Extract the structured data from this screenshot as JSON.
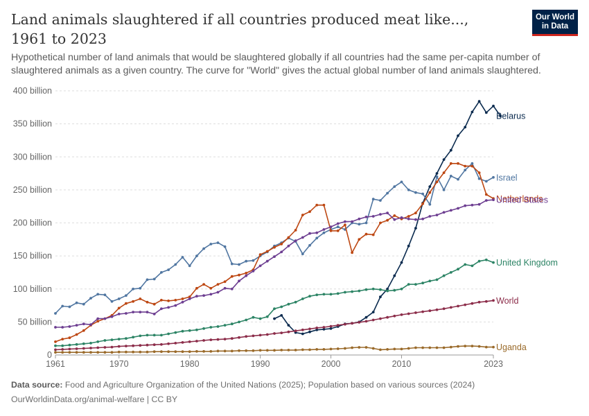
{
  "header": {
    "title": "Land animals slaughtered if all countries produced meat like..., 1961 to 2023",
    "subtitle": "Hypothetical number of land animals that would be slaughtered globally if all countries had the same per-capita number of slaughtered animals as a given country. The curve for \"World\" gives the actual global number of land animals slaughtered.",
    "logo_line1": "Our World",
    "logo_line2": "in Data"
  },
  "footer": {
    "source_label": "Data source:",
    "source_text": "Food and Agriculture Organization of the United Nations (2025); Population based on various sources (2024)",
    "url_text": "OurWorldinData.org/animal-welfare | CC BY"
  },
  "chart_data": {
    "type": "line",
    "xlim": [
      1961,
      2023
    ],
    "ylim": [
      0,
      400
    ],
    "x_ticks": [
      1961,
      1970,
      1980,
      1990,
      2000,
      2010,
      2023
    ],
    "y_ticks": [
      {
        "value": 0,
        "label": "0"
      },
      {
        "value": 50,
        "label": "50 billion"
      },
      {
        "value": 100,
        "label": "100 billion"
      },
      {
        "value": 150,
        "label": "150 billion"
      },
      {
        "value": 200,
        "label": "200 billion"
      },
      {
        "value": 250,
        "label": "250 billion"
      },
      {
        "value": 300,
        "label": "300 billion"
      },
      {
        "value": 350,
        "label": "350 billion"
      },
      {
        "value": 400,
        "label": "400 billion"
      }
    ],
    "grid": "horizontal-dashed",
    "legend": "right, labels at line ends",
    "series": [
      {
        "name": "Belarus",
        "color": "#0b2b4f",
        "x_start": 1992,
        "values": [
          55,
          60,
          45,
          34,
          32,
          35,
          38,
          39,
          40,
          43,
          47,
          48,
          50,
          57,
          65,
          88,
          100,
          120,
          140,
          165,
          192,
          230,
          255,
          275,
          296,
          310,
          332,
          345,
          368,
          384,
          367,
          377,
          362
        ]
      },
      {
        "name": "Israel",
        "color": "#5076a1",
        "x_start": 1961,
        "values": [
          63,
          74,
          73,
          79,
          77,
          86,
          92,
          91,
          81,
          85,
          90,
          100,
          101,
          114,
          115,
          125,
          129,
          137,
          148,
          135,
          150,
          161,
          168,
          170,
          164,
          138,
          137,
          142,
          143,
          150,
          156,
          165,
          170,
          177,
          172,
          153,
          166,
          177,
          185,
          190,
          194,
          190,
          200,
          198,
          200,
          236,
          234,
          245,
          255,
          262,
          250,
          246,
          244,
          228,
          270,
          250,
          271,
          266,
          280,
          290,
          267,
          263,
          269
        ]
      },
      {
        "name": "Netherlands",
        "color": "#bd4712",
        "x_start": 1961,
        "values": [
          20,
          24,
          26,
          31,
          37,
          45,
          51,
          55,
          60,
          71,
          78,
          81,
          85,
          80,
          77,
          83,
          82,
          83,
          85,
          88,
          101,
          107,
          101,
          107,
          111,
          119,
          121,
          124,
          129,
          152,
          157,
          163,
          168,
          178,
          189,
          212,
          217,
          227,
          227,
          188,
          188,
          197,
          155,
          175,
          183,
          182,
          200,
          204,
          211,
          206,
          210,
          215,
          229,
          246,
          262,
          276,
          290,
          290,
          286,
          286,
          276,
          243,
          237
        ]
      },
      {
        "name": "United States",
        "color": "#6d3e91",
        "x_start": 1961,
        "values": [
          42,
          42,
          43,
          45,
          47,
          46,
          55,
          55,
          58,
          62,
          63,
          65,
          65,
          65,
          62,
          70,
          72,
          75,
          80,
          85,
          89,
          90,
          92,
          95,
          101,
          100,
          112,
          120,
          127,
          135,
          142,
          149,
          156,
          165,
          173,
          178,
          184,
          185,
          190,
          194,
          199,
          202,
          202,
          206,
          209,
          210,
          213,
          215,
          205,
          208,
          206,
          205,
          206,
          210,
          212,
          216,
          219,
          222,
          226,
          227,
          228,
          234,
          235
        ]
      },
      {
        "name": "United Kingdom",
        "color": "#2c8465",
        "x_start": 1961,
        "values": [
          14,
          14,
          15,
          16,
          17,
          18,
          20,
          22,
          23,
          24,
          25,
          27,
          29,
          30,
          30,
          30,
          32,
          34,
          36,
          37,
          38,
          40,
          42,
          43,
          45,
          47,
          50,
          53,
          57,
          55,
          58,
          70,
          73,
          77,
          80,
          85,
          89,
          91,
          92,
          92,
          93,
          95,
          96,
          97,
          99,
          100,
          99,
          97,
          98,
          100,
          107,
          107,
          109,
          112,
          114,
          120,
          125,
          130,
          137,
          135,
          142,
          144,
          140
        ]
      },
      {
        "name": "World",
        "color": "#8c2d4a",
        "x_start": 1961,
        "values": [
          8,
          8.5,
          9,
          9.5,
          10,
          10.5,
          11,
          11.5,
          12,
          13,
          13.5,
          14,
          14.5,
          15,
          15.5,
          16,
          17,
          18,
          19,
          20,
          21,
          22,
          23,
          23.5,
          24,
          25,
          26.5,
          28,
          29,
          30,
          31,
          32.5,
          33.5,
          35,
          36.5,
          38,
          39.5,
          41,
          42,
          43.5,
          45,
          46.5,
          48,
          49.5,
          51,
          53,
          55,
          57,
          59,
          61,
          62.5,
          64,
          65.5,
          67,
          68.5,
          70,
          72,
          74,
          76,
          78,
          80,
          81,
          82.5
        ]
      },
      {
        "name": "Uganda",
        "color": "#9a6a2a",
        "x_start": 1961,
        "values": [
          4,
          4,
          4,
          4,
          4,
          4,
          4,
          4,
          4,
          4.5,
          4.5,
          4.5,
          4.5,
          4.5,
          5,
          5,
          5,
          5,
          5,
          5,
          5.5,
          5.5,
          5.5,
          6,
          6,
          6,
          6.5,
          6.5,
          6.5,
          7,
          7,
          7,
          7.5,
          7.5,
          7.5,
          8,
          8,
          8.5,
          8.5,
          9,
          9.5,
          10,
          11,
          11.5,
          11.5,
          10,
          8,
          8.5,
          9,
          9,
          10,
          11,
          11,
          11,
          11,
          11,
          12,
          13,
          13.5,
          13.5,
          13,
          12,
          12
        ]
      }
    ]
  }
}
